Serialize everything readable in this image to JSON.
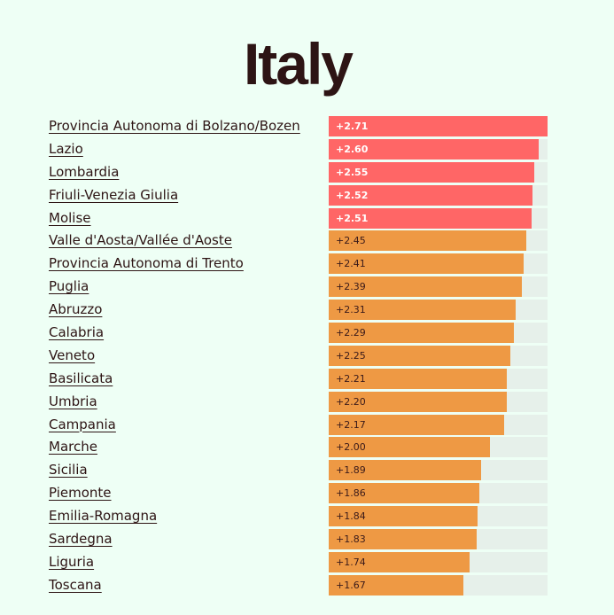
{
  "page": {
    "title": "Italy"
  },
  "colors": {
    "top": "#ff6666",
    "rest": "#ee9944",
    "track": "#e6f0ea",
    "background": "#eefff5",
    "top_text": "#ffffff",
    "rest_text": "#3a1a1a"
  },
  "chart_data": {
    "type": "bar",
    "orientation": "horizontal",
    "title": "Italy",
    "xlim": [
      0,
      2.71
    ],
    "categories": [
      "Provincia Autonoma di Bolzano/Bozen",
      "Lazio",
      "Lombardia",
      "Friuli-Venezia Giulia",
      "Molise",
      "Valle d'Aosta/Vallée d'Aoste",
      "Provincia Autonoma di Trento",
      "Puglia",
      "Abruzzo",
      "Calabria",
      "Veneto",
      "Basilicata",
      "Umbria",
      "Campania",
      "Marche",
      "Sicilia",
      "Piemonte",
      "Emilia-Romagna",
      "Sardegna",
      "Liguria",
      "Toscana"
    ],
    "values": [
      2.71,
      2.6,
      2.55,
      2.52,
      2.51,
      2.45,
      2.41,
      2.39,
      2.31,
      2.29,
      2.25,
      2.21,
      2.2,
      2.17,
      2.0,
      1.89,
      1.86,
      1.84,
      1.83,
      1.74,
      1.67
    ],
    "value_labels": [
      "+2.71",
      "+2.60",
      "+2.55",
      "+2.52",
      "+2.51",
      "+2.45",
      "+2.41",
      "+2.39",
      "+2.31",
      "+2.29",
      "+2.25",
      "+2.21",
      "+2.20",
      "+2.17",
      "+2.00",
      "+1.89",
      "+1.86",
      "+1.84",
      "+1.83",
      "+1.74",
      "+1.67"
    ],
    "highlighted_top": 5
  }
}
